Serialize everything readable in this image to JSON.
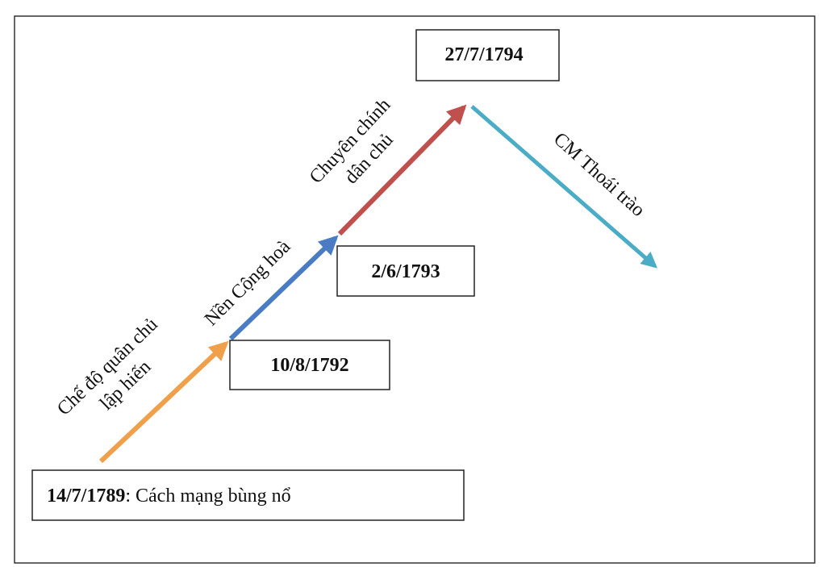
{
  "events": [
    {
      "date": "14/7/1789",
      "text": ": Cách mạng bùng nổ"
    },
    {
      "date": "10/8/1792"
    },
    {
      "date": "2/6/1793"
    },
    {
      "date": "27/7/1794"
    }
  ],
  "stages": [
    {
      "lines": [
        "Chế độ quân chủ",
        "lập hiến"
      ]
    },
    {
      "lines": [
        "Nền Cộng hoà"
      ]
    },
    {
      "lines": [
        "Chuyên chính",
        "dân chủ"
      ]
    },
    {
      "lines": [
        "CM Thoái trào"
      ]
    }
  ]
}
